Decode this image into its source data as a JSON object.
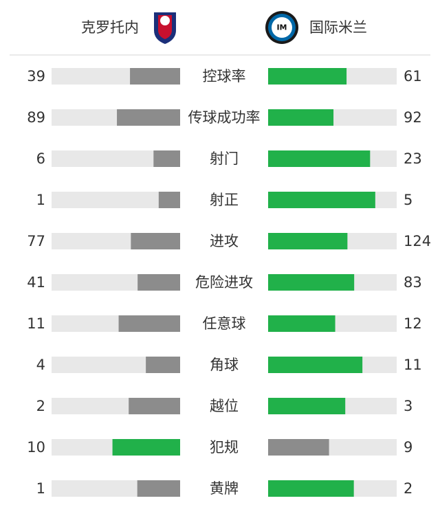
{
  "teams": {
    "home": "克罗托内",
    "away": "国际米兰"
  },
  "stats": [
    {
      "label": "控球率",
      "home": 39,
      "away": 61
    },
    {
      "label": "传球成功率",
      "home": 89,
      "away": 92
    },
    {
      "label": "射门",
      "home": 6,
      "away": 23
    },
    {
      "label": "射正",
      "home": 1,
      "away": 5
    },
    {
      "label": "进攻",
      "home": 77,
      "away": 124
    },
    {
      "label": "危险进攻",
      "home": 41,
      "away": 83
    },
    {
      "label": "任意球",
      "home": 11,
      "away": 12
    },
    {
      "label": "角球",
      "home": 4,
      "away": 11
    },
    {
      "label": "越位",
      "home": 2,
      "away": 3
    },
    {
      "label": "犯规",
      "home": 10,
      "away": 9
    },
    {
      "label": "黄牌",
      "home": 1,
      "away": 2
    }
  ]
}
